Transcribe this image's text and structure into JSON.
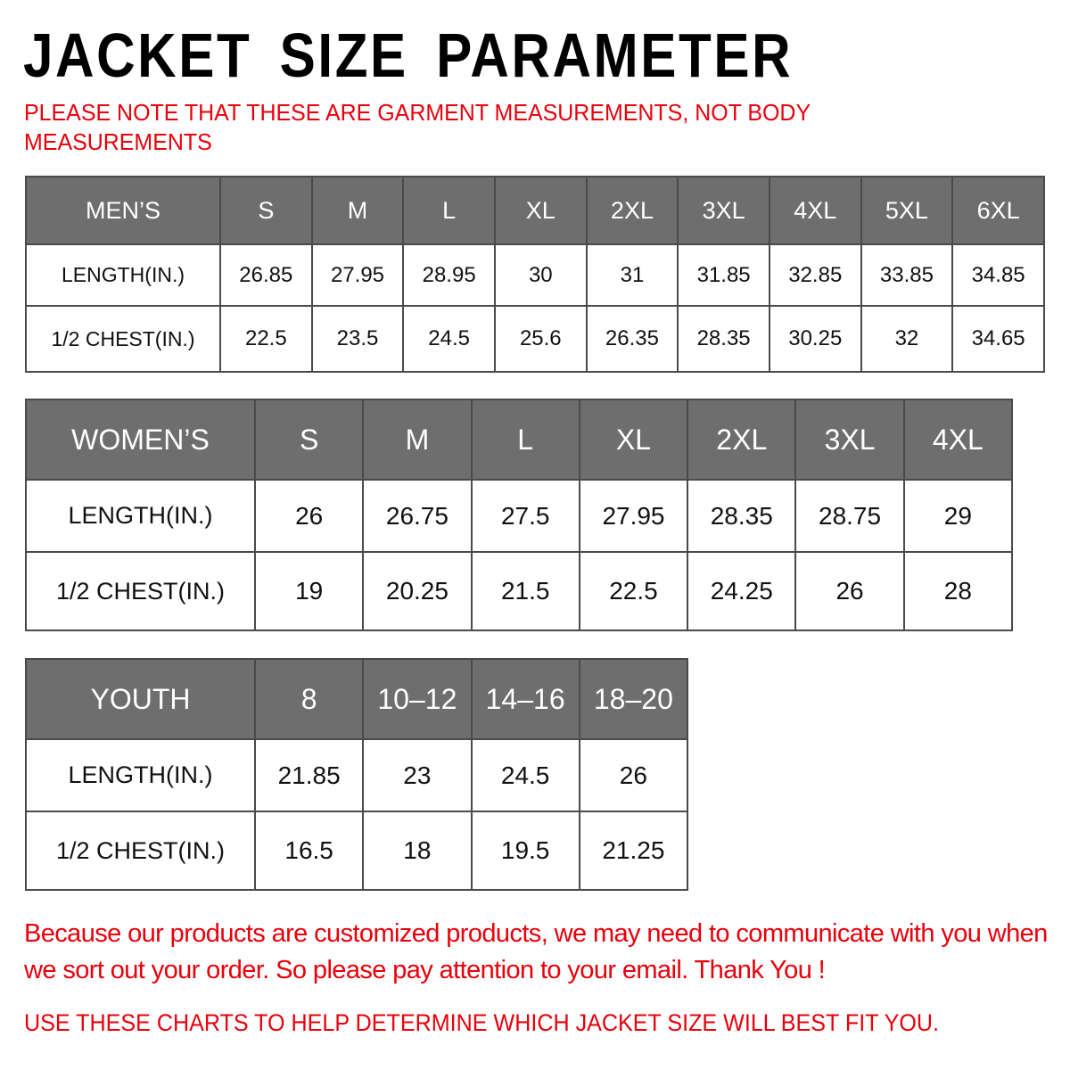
{
  "title": "JACKET SIZE PARAMETER",
  "note": "PLEASE NOTE THAT THESE ARE GARMENT MEASUREMENTS, NOT BODY MEASUREMENTS",
  "colors": {
    "header_bg": "#6e6e6e",
    "accent_red": "#e8000b"
  },
  "mens": {
    "header": "MEN’S",
    "sizes": [
      "S",
      "M",
      "L",
      "XL",
      "2XL",
      "3XL",
      "4XL",
      "5XL",
      "6XL"
    ],
    "rows": [
      {
        "label": "LENGTH(IN.)",
        "values": [
          "26.85",
          "27.95",
          "28.95",
          "30",
          "31",
          "31.85",
          "32.85",
          "33.85",
          "34.85"
        ]
      },
      {
        "label": "1/2 CHEST(IN.)",
        "values": [
          "22.5",
          "23.5",
          "24.5",
          "25.6",
          "26.35",
          "28.35",
          "30.25",
          "32",
          "34.65"
        ]
      }
    ]
  },
  "womens": {
    "header": "WOMEN’S",
    "sizes": [
      "S",
      "M",
      "L",
      "XL",
      "2XL",
      "3XL",
      "4XL"
    ],
    "rows": [
      {
        "label": "LENGTH(IN.)",
        "values": [
          "26",
          "26.75",
          "27.5",
          "27.95",
          "28.35",
          "28.75",
          "29"
        ]
      },
      {
        "label": "1/2 CHEST(IN.)",
        "values": [
          "19",
          "20.25",
          "21.5",
          "22.5",
          "24.25",
          "26",
          "28"
        ]
      }
    ]
  },
  "youth": {
    "header": "YOUTH",
    "sizes": [
      "8",
      "10–12",
      "14–16",
      "18–20"
    ],
    "rows": [
      {
        "label": "LENGTH(IN.)",
        "values": [
          "21.85",
          "23",
          "24.5",
          "26"
        ]
      },
      {
        "label": "1/2 CHEST(IN.)",
        "values": [
          "16.5",
          "18",
          "19.5",
          "21.25"
        ]
      }
    ]
  },
  "footer": {
    "message": "Because our products are customized products, we may need to communicate with you when we sort out your order. So please pay attention to your email. Thank You !",
    "instruction": "USE THESE CHARTS TO HELP DETERMINE WHICH JACKET SIZE WILL BEST FIT YOU."
  }
}
